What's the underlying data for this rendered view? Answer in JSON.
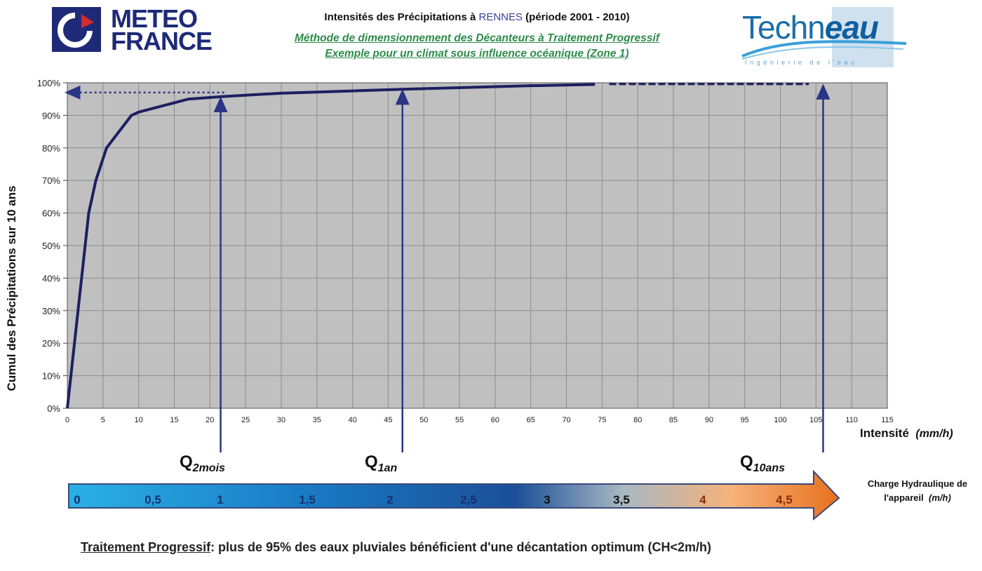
{
  "header": {
    "title_prefix": "Intensités des Précipitations à",
    "title_city": "RENNES",
    "title_suffix": "(période 2001 - 2010)",
    "subtitle_1": "Méthode de dimensionnement des Décanteurs à Traitement Progressif",
    "subtitle_2": "Exemple pour un climat sous influence océanique  (Zone 1)"
  },
  "logos": {
    "meteo_line1": "METEO",
    "meteo_line2": "FRANCE",
    "techneau_main": "Techn",
    "techneau_eau": "eau",
    "techneau_tagline": "Ingénierie de l'eau"
  },
  "chart_data": {
    "type": "line",
    "ylabel": "Cumul des Précipitations sur 10 ans",
    "xlabel": "Intensité",
    "xlabel_unit": "(mm/h)",
    "xlim": [
      0,
      115
    ],
    "ylim": [
      0,
      100
    ],
    "x_ticks": [
      "0",
      "5",
      "10",
      "15",
      "20",
      "25",
      "30",
      "35",
      "40",
      "45",
      "50",
      "55",
      "60",
      "65",
      "70",
      "75",
      "80",
      "85",
      "90",
      "95",
      "100",
      "105",
      "110",
      "115"
    ],
    "y_ticks": [
      "0%",
      "10%",
      "20%",
      "30%",
      "40%",
      "50%",
      "60%",
      "70%",
      "80%",
      "90%",
      "100%"
    ],
    "grid": true,
    "series": [
      {
        "x": [
          0,
          1,
          3,
          4,
          5.5,
          9,
          10,
          17,
          22,
          30,
          40,
          47,
          55,
          65,
          74
        ],
        "y": [
          0,
          20,
          60,
          70,
          80,
          90,
          91,
          95,
          95.8,
          96.8,
          97.5,
          98,
          98.5,
          99.1,
          99.5
        ]
      }
    ],
    "dashed_segment": {
      "x": [
        76,
        104
      ],
      "y": [
        99.6,
        99.6
      ]
    },
    "dotted_arrow": {
      "x_from": 22,
      "x_to": 0,
      "y": 97
    },
    "markers": [
      {
        "label": "Q",
        "sub": "2mois",
        "x": 21.5
      },
      {
        "label": "Q",
        "sub": "1an",
        "x": 47
      },
      {
        "label": "Q",
        "sub": "10ans",
        "x": 106
      }
    ],
    "colors": {
      "plot_bg": "#c0c0c0",
      "line": "#1c2060",
      "arrow": "#2b3585",
      "grid": "#8c8c8c"
    }
  },
  "scale_bar": {
    "values": [
      "0",
      "0,5",
      "1",
      "1,5",
      "2",
      "2,5",
      "3",
      "3,5",
      "4",
      "4,5"
    ],
    "label_line1": "Charge Hydraulique de",
    "label_line2": "l'appareil",
    "label_unit": "(m/h)"
  },
  "footer": {
    "underlined": "Traitement Progressif",
    "text": ": plus de 95% des eaux pluviales bénéficient d'une décantation optimum (CH<2m/h)"
  }
}
